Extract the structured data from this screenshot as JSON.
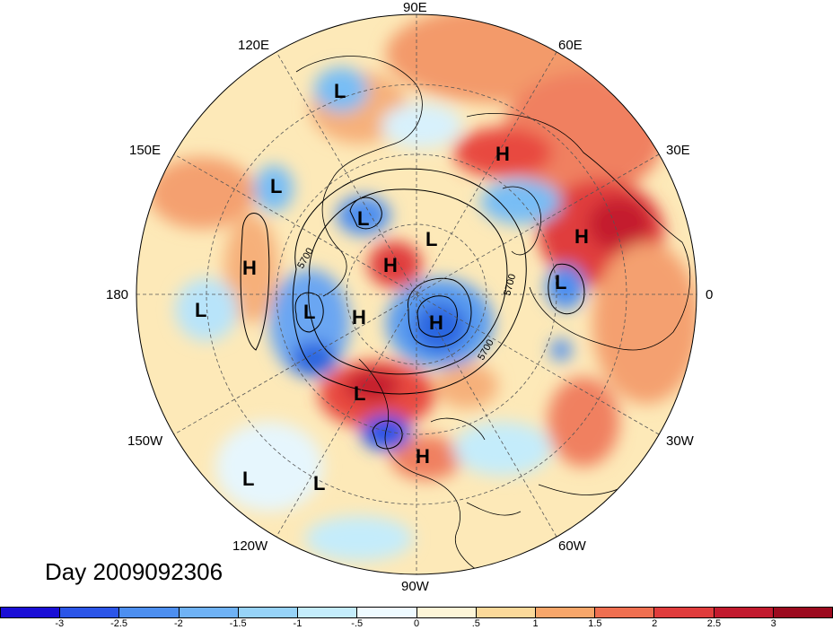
{
  "title": "Day 2009092306",
  "longitude_labels": [
    "90E",
    "60E",
    "30E",
    "0",
    "30W",
    "60W",
    "90W",
    "120W",
    "150W",
    "180",
    "150E",
    "120E"
  ],
  "contour_labels": [
    "5700",
    "5700",
    "5700"
  ],
  "pressure_centers": [
    "L",
    "H",
    "H",
    "L",
    "H",
    "L",
    "L",
    "H",
    "L",
    "L",
    "L",
    "H",
    "H",
    "L",
    "H",
    "L",
    "L"
  ],
  "colorbar": {
    "ticks": [
      "-3",
      "-2.5",
      "-2",
      "-1.5",
      "-1",
      "-.5",
      "0",
      ".5",
      "1",
      "1.5",
      "2",
      "2.5",
      "3"
    ],
    "colors": [
      "#1a0fd6",
      "#2b55e8",
      "#4d8ff0",
      "#6fb2f5",
      "#97d3f8",
      "#c4ecfb",
      "#eefaff",
      "#fdf5d7",
      "#fbd99a",
      "#f7a66a",
      "#ef6f50",
      "#e03c3c",
      "#c21a2e",
      "#9c0a1e"
    ]
  },
  "colors": {
    "high": "#c0141e",
    "low": "#1858b8"
  }
}
